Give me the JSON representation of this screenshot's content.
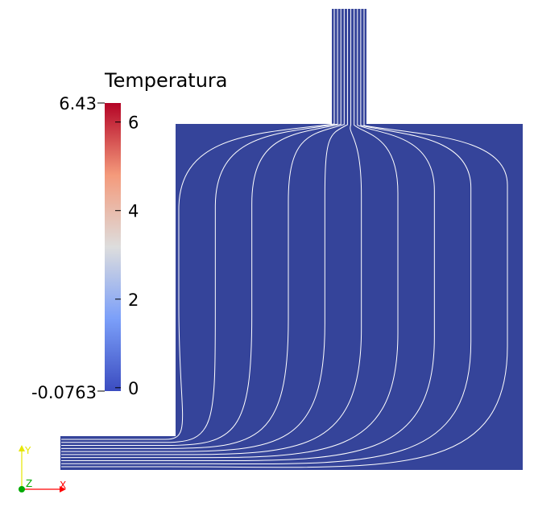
{
  "colorbar": {
    "title": "Temperatura",
    "range_max_label": "6.43",
    "range_min_label": "-0.0763",
    "range": [
      -0.0763,
      6.43
    ],
    "tick_values": [
      0,
      2,
      4,
      6
    ],
    "tick_labels": [
      "0",
      "2",
      "4",
      "6"
    ],
    "colormap_stops": [
      "#3b4cc0",
      "#dddddd",
      "#b40426"
    ]
  },
  "domain": {
    "fill_color": "#35449a",
    "line_color": "#ffffff"
  },
  "axes": {
    "x_label": "X",
    "y_label": "Y",
    "z_label": "Z",
    "x_color": "#ff0000",
    "y_color": "#ffff00",
    "z_color": "#00aa00"
  }
}
